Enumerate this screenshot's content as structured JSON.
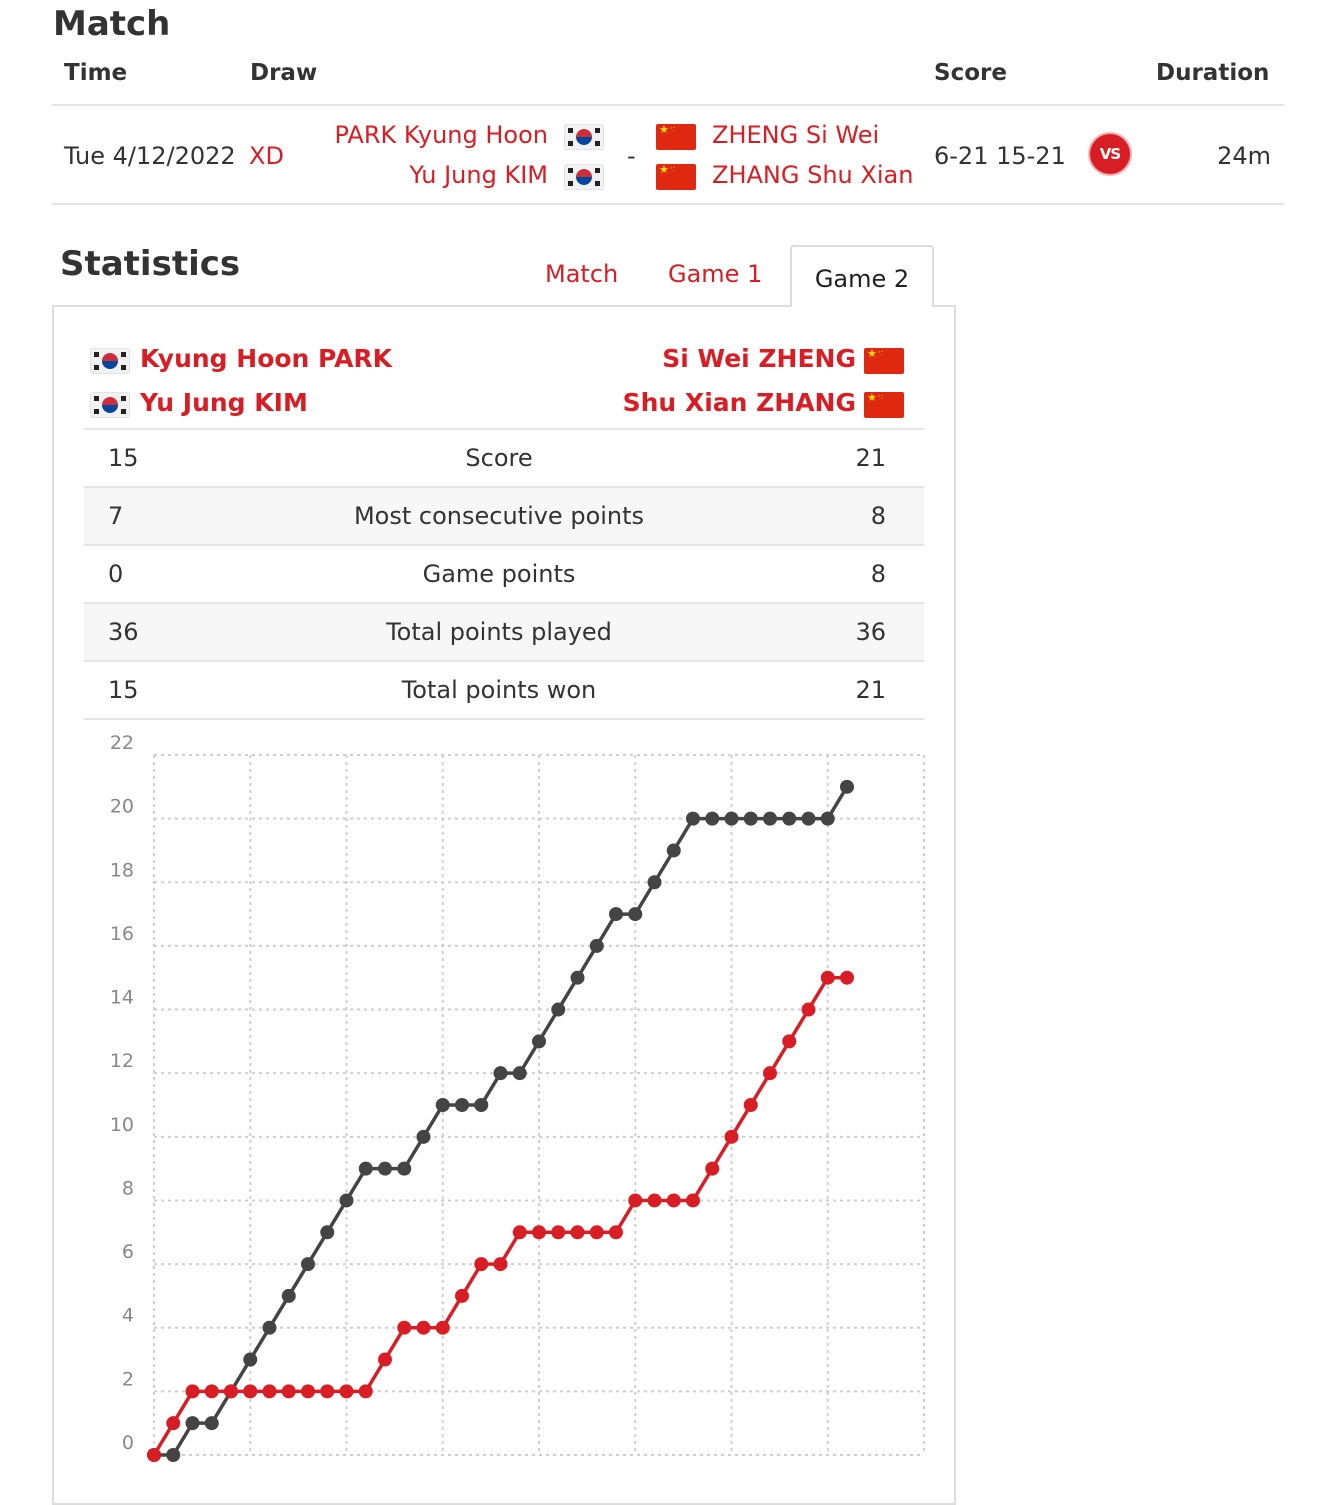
{
  "match": {
    "title": "Match",
    "headers": {
      "time": "Time",
      "draw": "Draw",
      "score": "Score",
      "duration": "Duration"
    },
    "row": {
      "time": "Tue 4/12/2022",
      "draw": "XD",
      "team1": [
        "PARK Kyung Hoon",
        "Yu Jung KIM"
      ],
      "separator": "-",
      "team2": [
        "ZHENG Si Wei",
        "ZHANG Shu Xian"
      ],
      "score": "6-21 15-21",
      "vs_label": "VS",
      "duration": "24m"
    }
  },
  "statistics": {
    "title": "Statistics",
    "tabs": [
      "Match",
      "Game 1",
      "Game 2"
    ],
    "active_tab": "Game 2",
    "team1": [
      "Kyung Hoon PARK",
      "Yu Jung KIM"
    ],
    "team2": [
      "Si Wei ZHENG",
      "Shu Xian ZHANG"
    ],
    "rows": [
      {
        "left": "15",
        "label": "Score",
        "right": "21"
      },
      {
        "left": "7",
        "label": "Most consecutive points",
        "right": "8"
      },
      {
        "left": "0",
        "label": "Game points",
        "right": "8"
      },
      {
        "left": "36",
        "label": "Total points played",
        "right": "36"
      },
      {
        "left": "15",
        "label": "Total points won",
        "right": "21"
      }
    ]
  },
  "flags": {
    "team1": "korea-flag-icon",
    "team2": "china-flag-icon"
  },
  "colors": {
    "accent": "#d81e24",
    "team2_line": "#444444",
    "team1_line": "#d81e24"
  },
  "chart_data": {
    "type": "line",
    "x": [
      0,
      1,
      2,
      3,
      4,
      5,
      6,
      7,
      8,
      9,
      10,
      11,
      12,
      13,
      14,
      15,
      16,
      17,
      18,
      19,
      20,
      21,
      22,
      23,
      24,
      25,
      26,
      27,
      28,
      29,
      30,
      31,
      32,
      33,
      34,
      35,
      36
    ],
    "series": [
      {
        "values": [
          0,
          1,
          2,
          2,
          2,
          2,
          2,
          2,
          2,
          2,
          2,
          2,
          3,
          4,
          4,
          4,
          5,
          6,
          6,
          7,
          7,
          7,
          7,
          7,
          7,
          8,
          8,
          8,
          8,
          9,
          10,
          11,
          12,
          13,
          14,
          15,
          15
        ]
      },
      {
        "values": [
          0,
          0,
          1,
          1,
          2,
          3,
          4,
          5,
          6,
          7,
          8,
          9,
          9,
          9,
          10,
          11,
          11,
          11,
          12,
          12,
          13,
          14,
          15,
          16,
          17,
          17,
          18,
          19,
          20,
          20,
          20,
          20,
          20,
          20,
          20,
          20,
          21
        ]
      }
    ],
    "yticks": [
      0,
      2,
      4,
      6,
      8,
      10,
      12,
      14,
      16,
      18,
      20,
      22
    ],
    "ylim": [
      0,
      22
    ],
    "grid": true
  }
}
